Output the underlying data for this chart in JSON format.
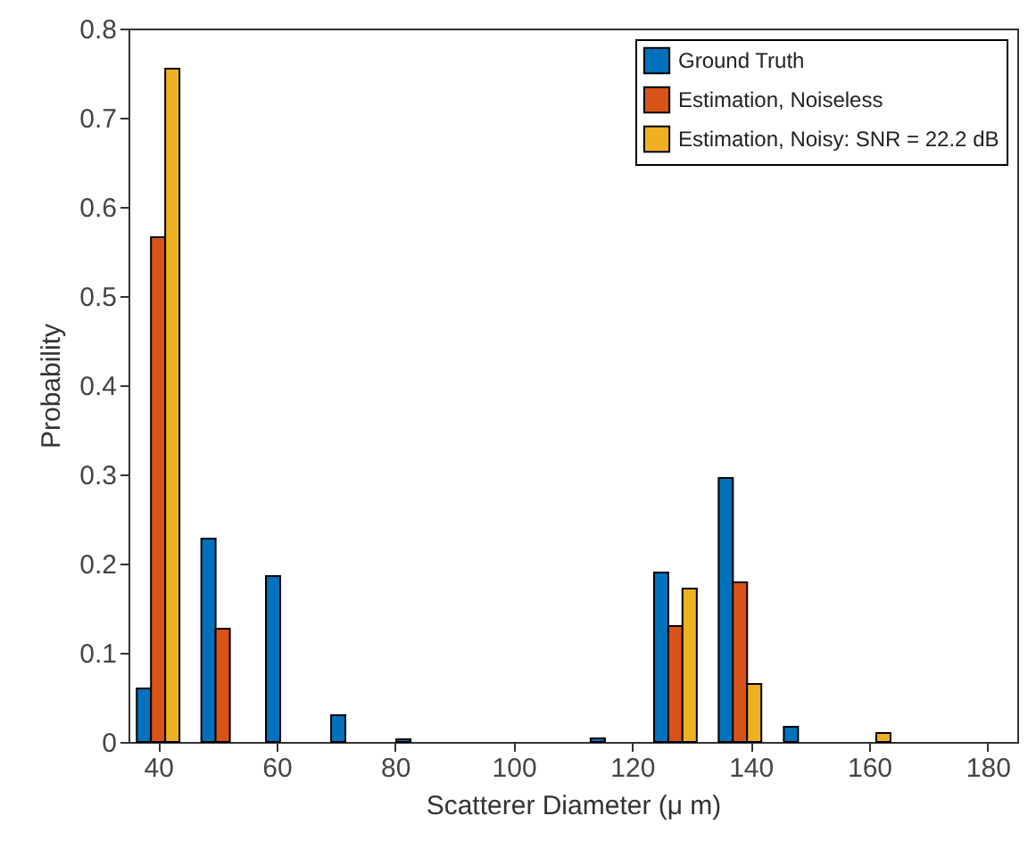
{
  "chart_data": {
    "type": "bar",
    "xlabel": "Scatterer Diameter (μ m)",
    "ylabel": "Probability",
    "series": [
      {
        "name": "Ground Truth",
        "color": "#0072bd",
        "x": [
          37.6,
          48.5,
          59.4,
          70.4,
          81.4,
          114.2,
          124.9,
          135.8,
          146.8
        ],
        "values": [
          0.06,
          0.228,
          0.186,
          0.03,
          0.003,
          0.004,
          0.19,
          0.296,
          0.017
        ]
      },
      {
        "name": "Estimation, Noiseless",
        "color": "#d95319",
        "x": [
          40,
          50.9,
          127.3,
          138.2
        ],
        "values": [
          0.566,
          0.127,
          0.13,
          0.179
        ]
      },
      {
        "name": "Estimation, Noisy: SNR = 22.2 dB",
        "color": "#edb120",
        "x": [
          42.4,
          129.7,
          140.6,
          162.4
        ],
        "values": [
          0.755,
          0.172,
          0.065,
          0.01
        ]
      }
    ],
    "xlim": [
      35,
      185
    ],
    "xticks": [
      40,
      60,
      80,
      100,
      120,
      140,
      160,
      180
    ],
    "ylim": [
      0,
      0.8
    ],
    "yticks": [
      0,
      0.1,
      0.2,
      0.3,
      0.4,
      0.5,
      0.6,
      0.7,
      0.8
    ],
    "grid": false,
    "legend": "top right"
  }
}
